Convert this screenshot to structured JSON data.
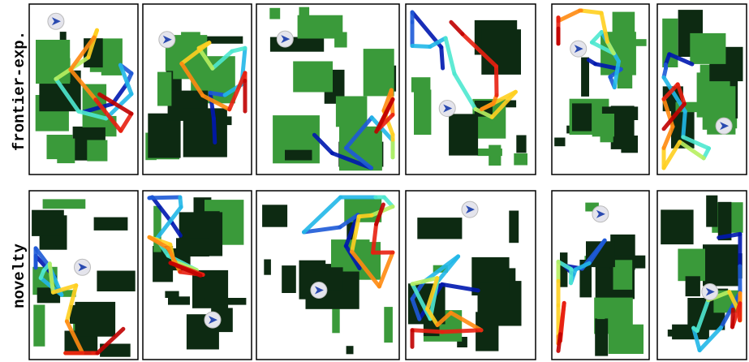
{
  "rows": [
    {
      "label": "frontier-exp."
    },
    {
      "label": "novelty"
    }
  ]
}
